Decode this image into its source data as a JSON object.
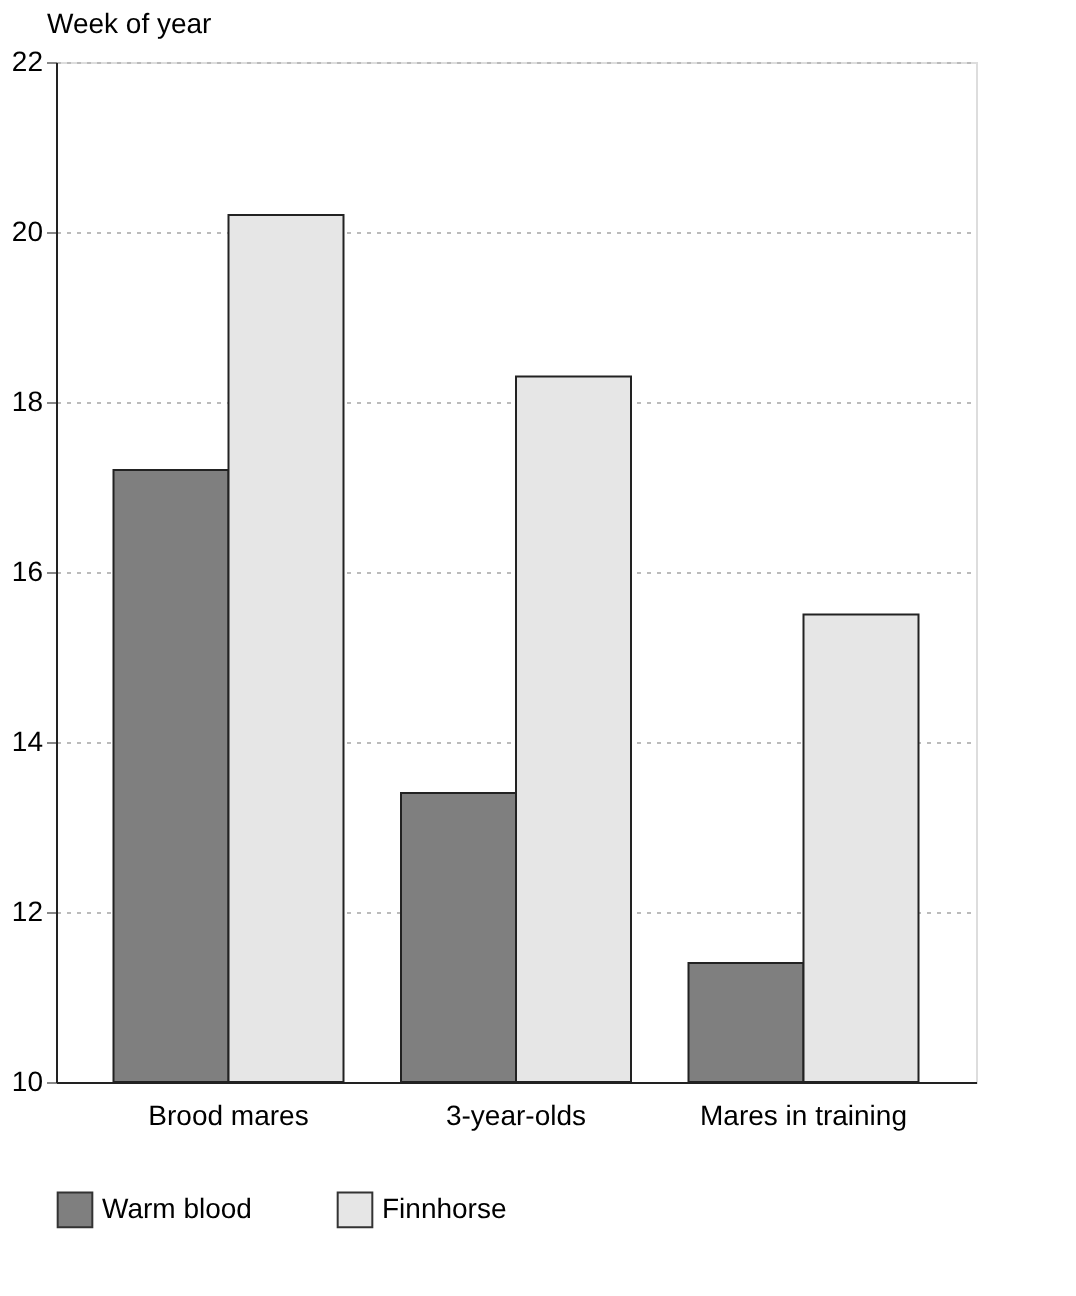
{
  "chart_data": {
    "type": "bar",
    "ylabel": "Week of year",
    "categories": [
      "Brood mares",
      "3-year-olds",
      "Mares in training"
    ],
    "series": [
      {
        "name": "Warm blood",
        "color": "#7f7f7f",
        "values": [
          17.2,
          13.4,
          11.4
        ]
      },
      {
        "name": "Finnhorse",
        "color": "#e6e6e6",
        "values": [
          20.2,
          18.3,
          15.5
        ]
      }
    ],
    "ylim": [
      10,
      22
    ],
    "yticks": [
      10,
      12,
      14,
      16,
      18,
      20,
      22
    ],
    "grid": "y",
    "legend": "bottom"
  }
}
